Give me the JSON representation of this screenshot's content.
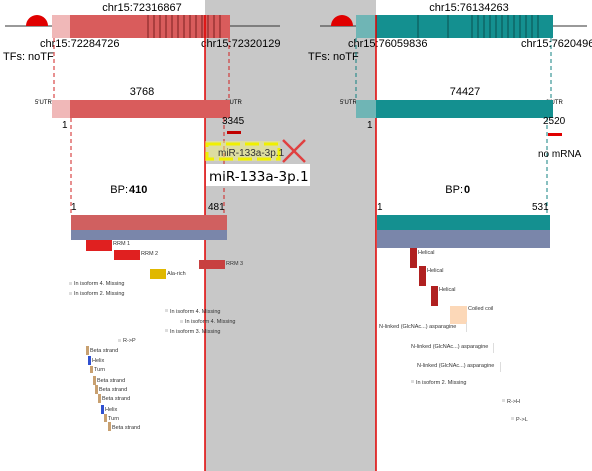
{
  "left_gene": {
    "coord_top": "chr15:72316867",
    "coord_start": "chr15:72284726",
    "coord_end": "chr15:72320129",
    "tf_label": "TFs: noTF",
    "transcript_length": "3768",
    "utr5": "5'UTR",
    "utr3": "3'UTR",
    "tx_start": "1",
    "tx_end": "3345",
    "bp_label": "BP:",
    "bp_value": "410",
    "protein_start": "1",
    "protein_end": "481",
    "color": "#d95c5c"
  },
  "right_gene": {
    "coord_top": "chr15:76134263",
    "coord_start": "chr15:76059836",
    "coord_end": "chr15:76204963",
    "tf_label": "TFs: noTF",
    "transcript_length": "74427",
    "utr5": "5'UTR",
    "utr3": "3'UTR",
    "tx_start": "1",
    "tx_end": "2520",
    "bp_label": "BP:",
    "bp_value": "0",
    "protein_start": "1",
    "protein_end": "531",
    "no_mrna_label": "no mRNA",
    "color": "#149090"
  },
  "mirna": {
    "small_label": "miR-133a-3p.1",
    "big_label": "miR-133a-3p.1"
  },
  "left_features": [
    {
      "label": "RRM 1"
    },
    {
      "label": "RRM 2"
    },
    {
      "label": "Ala-rich"
    },
    {
      "label": "RRM 3"
    },
    {
      "label": "In isoform 4. Missing"
    },
    {
      "label": "In isoform 2. Missing"
    },
    {
      "label": "In isoform 4. Missing"
    },
    {
      "label": "In isoform 4. Missing"
    },
    {
      "label": "In isoform 3. Missing"
    },
    {
      "label": "R->P"
    },
    {
      "label": "Beta strand"
    },
    {
      "label": "Helix"
    },
    {
      "label": "Turn"
    },
    {
      "label": "Beta strand"
    },
    {
      "label": "Beta strand"
    },
    {
      "label": "Beta strand"
    },
    {
      "label": "Helix"
    },
    {
      "label": "Turn"
    },
    {
      "label": "Beta strand"
    }
  ],
  "right_features": [
    {
      "label": "Helical"
    },
    {
      "label": "Helical"
    },
    {
      "label": "Helical"
    },
    {
      "label": "Coiled coil"
    },
    {
      "label": "N-linked (GlcNAc...) asparagine"
    },
    {
      "label": "N-linked (GlcNAc...) asparagine"
    },
    {
      "label": "N-linked (GlcNAc...) asparagine"
    },
    {
      "label": "In isoform 2. Missing"
    },
    {
      "label": "R->H"
    },
    {
      "label": "P->L"
    }
  ]
}
